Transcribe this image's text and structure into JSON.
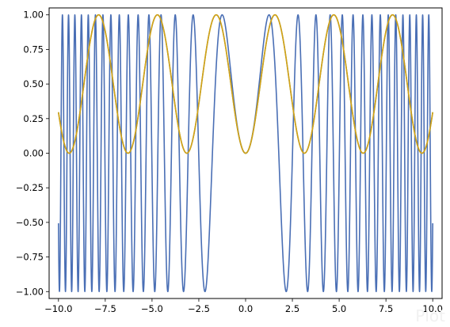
{
  "chart_data": {
    "type": "line",
    "x_range": [
      -10,
      10
    ],
    "xlim": [
      -10.5,
      10.5
    ],
    "ylim": [
      -1.05,
      1.05
    ],
    "x_ticks": [
      -10,
      -7.5,
      -5,
      -2.5,
      0,
      2.5,
      5,
      7.5,
      10
    ],
    "x_tick_labels": [
      "−10.0",
      "−7.5",
      "−5.0",
      "−2.5",
      "0.0",
      "2.5",
      "5.0",
      "7.5",
      "10.0"
    ],
    "y_ticks": [
      -1,
      -0.75,
      -0.5,
      -0.25,
      0,
      0.25,
      0.5,
      0.75,
      1
    ],
    "y_tick_labels": [
      "−1.00",
      "−0.75",
      "−0.50",
      "−0.25",
      "0.00",
      "0.25",
      "0.50",
      "0.75",
      "1.00"
    ],
    "grid": false,
    "legend": false,
    "series": [
      {
        "function": "sin(x^2)",
        "color": "#4a6fb5",
        "x_start": -10,
        "x_end": 10
      },
      {
        "function": "sin(x)^2",
        "color": "#6aa84f",
        "x_start": -10,
        "x_end": 10
      },
      {
        "function": "sin(x)^2",
        "color": "#d4a017",
        "x_start": -10,
        "x_end": 10
      }
    ]
  },
  "watermark": "Plot"
}
